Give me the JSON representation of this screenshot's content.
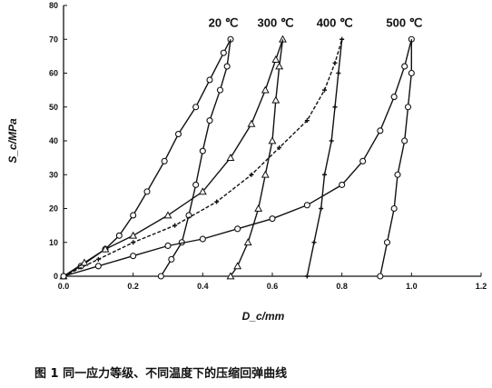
{
  "caption": "图 1  同一应力等级、不同温度下的压缩回弹曲线",
  "chart_data": {
    "type": "line",
    "xlabel": "D_c/mm",
    "ylabel": "S_c/MPa",
    "xlim": [
      0,
      1.2
    ],
    "ylim": [
      0,
      80
    ],
    "xticks": [
      "0.0",
      "0.2",
      "0.4",
      "0.6",
      "0.8",
      "1.0",
      "1.2"
    ],
    "yticks": [
      "0",
      "10",
      "20",
      "30",
      "40",
      "50",
      "60",
      "70",
      "80"
    ],
    "grid": false,
    "series": [
      {
        "name": "20 ℃",
        "marker": "circle",
        "loading": [
          [
            0,
            0
          ],
          [
            0.05,
            3
          ],
          [
            0.12,
            8
          ],
          [
            0.16,
            12
          ],
          [
            0.2,
            18
          ],
          [
            0.24,
            25
          ],
          [
            0.29,
            34
          ],
          [
            0.33,
            42
          ],
          [
            0.38,
            50
          ],
          [
            0.42,
            58
          ],
          [
            0.46,
            66
          ],
          [
            0.48,
            70
          ]
        ],
        "unloading": [
          [
            0.48,
            70
          ],
          [
            0.47,
            62
          ],
          [
            0.45,
            55
          ],
          [
            0.42,
            46
          ],
          [
            0.4,
            37
          ],
          [
            0.38,
            27
          ],
          [
            0.36,
            18
          ],
          [
            0.34,
            10
          ],
          [
            0.31,
            5
          ],
          [
            0.28,
            0
          ]
        ]
      },
      {
        "name": "300 ℃",
        "marker": "triangle",
        "loading": [
          [
            0,
            0
          ],
          [
            0.06,
            4
          ],
          [
            0.12,
            8
          ],
          [
            0.2,
            12
          ],
          [
            0.3,
            18
          ],
          [
            0.4,
            25
          ],
          [
            0.48,
            35
          ],
          [
            0.54,
            45
          ],
          [
            0.58,
            55
          ],
          [
            0.61,
            64
          ],
          [
            0.63,
            70
          ]
        ],
        "unloading": [
          [
            0.63,
            70
          ],
          [
            0.62,
            62
          ],
          [
            0.61,
            52
          ],
          [
            0.6,
            40
          ],
          [
            0.58,
            30
          ],
          [
            0.56,
            20
          ],
          [
            0.53,
            10
          ],
          [
            0.5,
            3
          ],
          [
            0.48,
            0
          ]
        ]
      },
      {
        "name": "400 ℃",
        "marker": "cross",
        "loading": [
          [
            0,
            0
          ],
          [
            0.1,
            5
          ],
          [
            0.2,
            10
          ],
          [
            0.32,
            15
          ],
          [
            0.44,
            22
          ],
          [
            0.54,
            30
          ],
          [
            0.62,
            38
          ],
          [
            0.7,
            46
          ],
          [
            0.75,
            55
          ],
          [
            0.78,
            63
          ],
          [
            0.8,
            70
          ]
        ],
        "unloading": [
          [
            0.8,
            70
          ],
          [
            0.79,
            60
          ],
          [
            0.78,
            50
          ],
          [
            0.77,
            40
          ],
          [
            0.75,
            30
          ],
          [
            0.74,
            20
          ],
          [
            0.72,
            10
          ],
          [
            0.7,
            0
          ]
        ]
      },
      {
        "name": "500 ℃",
        "marker": "circle",
        "loading": [
          [
            0,
            0
          ],
          [
            0.1,
            3
          ],
          [
            0.2,
            6
          ],
          [
            0.3,
            9
          ],
          [
            0.4,
            11
          ],
          [
            0.5,
            14
          ],
          [
            0.6,
            17
          ],
          [
            0.7,
            21
          ],
          [
            0.8,
            27
          ],
          [
            0.86,
            34
          ],
          [
            0.91,
            43
          ],
          [
            0.95,
            53
          ],
          [
            0.98,
            62
          ],
          [
            1,
            70
          ]
        ],
        "unloading": [
          [
            1,
            70
          ],
          [
            1,
            60
          ],
          [
            0.99,
            50
          ],
          [
            0.98,
            40
          ],
          [
            0.96,
            30
          ],
          [
            0.95,
            20
          ],
          [
            0.93,
            10
          ],
          [
            0.91,
            0
          ]
        ]
      }
    ]
  }
}
